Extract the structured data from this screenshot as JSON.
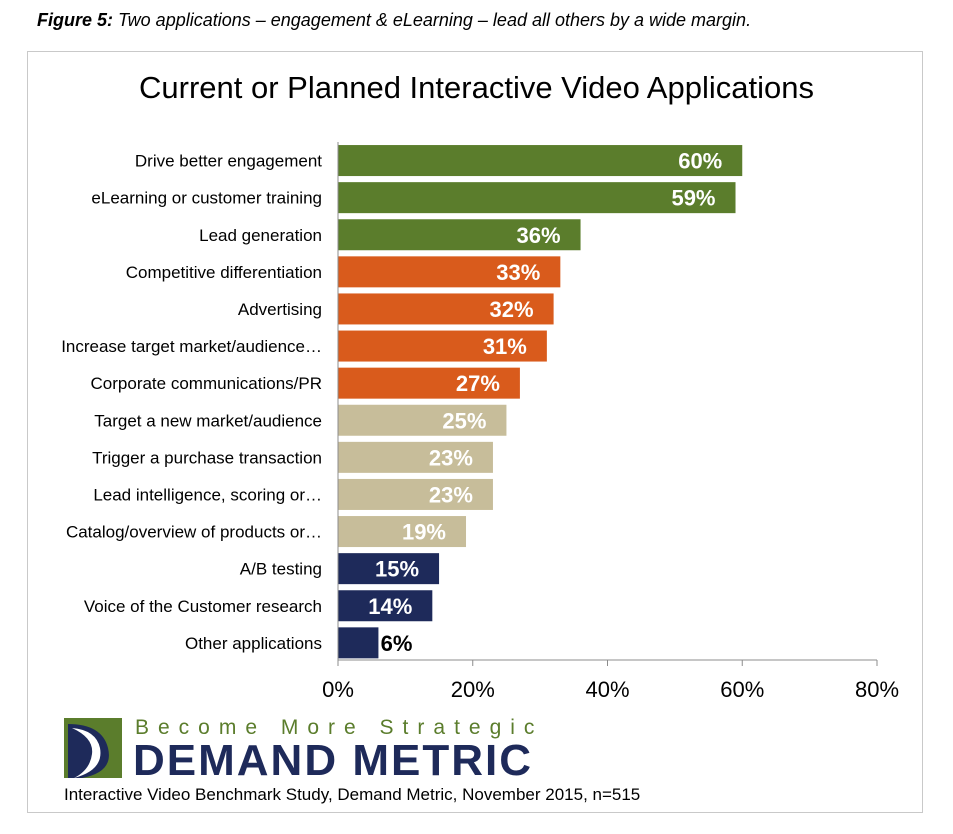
{
  "figure_caption": {
    "label": "Figure 5:",
    "text": " Two applications – engagement & eLearning – lead all others by a wide margin."
  },
  "colors": {
    "green": "#5b7d2c",
    "orange": "#d95b1c",
    "tan": "#c7bd9a",
    "navy": "#1e2a5a"
  },
  "chart_data": {
    "type": "bar",
    "orientation": "horizontal",
    "title": "Current or Planned Interactive Video Applications",
    "categories": [
      "Drive better engagement",
      "eLearning or customer training",
      "Lead generation",
      "Competitive differentiation",
      "Advertising",
      "Increase target market/audience…",
      "Corporate communications/PR",
      "Target a new market/audience",
      "Trigger a purchase transaction",
      "Lead intelligence, scoring or…",
      "Catalog/overview of products or…",
      "A/B testing",
      "Voice of the Customer research",
      "Other applications"
    ],
    "values": [
      60,
      59,
      36,
      33,
      32,
      31,
      27,
      25,
      23,
      23,
      19,
      15,
      14,
      6
    ],
    "data_labels": [
      "60%",
      "59%",
      "36%",
      "33%",
      "32%",
      "31%",
      "27%",
      "25%",
      "23%",
      "23%",
      "19%",
      "15%",
      "14%",
      "6%"
    ],
    "bar_color_groups": [
      "green",
      "green",
      "green",
      "orange",
      "orange",
      "orange",
      "orange",
      "tan",
      "tan",
      "tan",
      "tan",
      "navy",
      "navy",
      "navy"
    ],
    "xlim": [
      0,
      80
    ],
    "xticks": [
      0,
      20,
      40,
      60,
      80
    ],
    "xtick_labels": [
      "0%",
      "20%",
      "40%",
      "60%",
      "80%"
    ],
    "xlabel": "",
    "ylabel": "",
    "grid": false,
    "legend": "none"
  },
  "logo": {
    "tagline": "Become More Strategic",
    "brand": "DEMAND METRIC"
  },
  "source_note": "Interactive Video Benchmark Study, Demand Metric, November 2015, n=515"
}
